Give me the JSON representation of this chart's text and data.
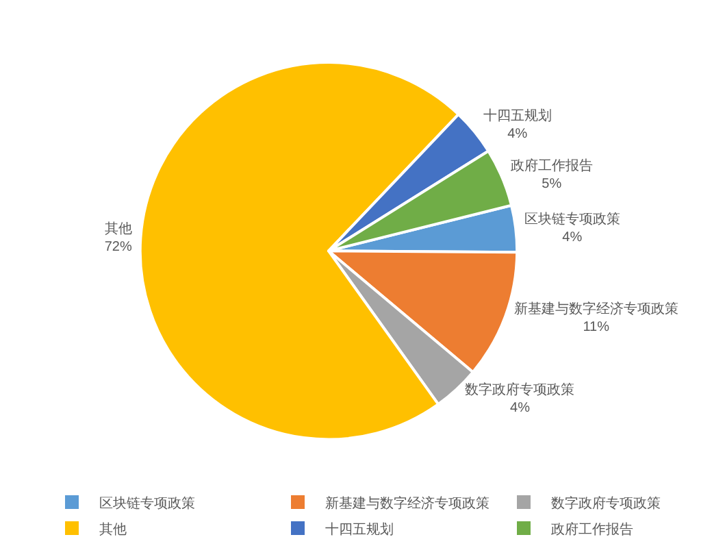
{
  "chart_data": {
    "type": "pie",
    "categories": [
      "区块链专项政策",
      "新基建与数字经济专项政策",
      "数字政府专项政策",
      "其他",
      "十四五规划",
      "政府工作报告"
    ],
    "values": [
      4,
      11,
      4,
      72,
      4,
      5
    ],
    "value_labels": [
      "4%",
      "11%",
      "4%",
      "72%",
      "4%",
      "5%"
    ],
    "colors": [
      "#5b9bd5",
      "#ed7d31",
      "#a5a5a5",
      "#ffc000",
      "#4472c4",
      "#70ad47"
    ],
    "legend": "bottom"
  }
}
